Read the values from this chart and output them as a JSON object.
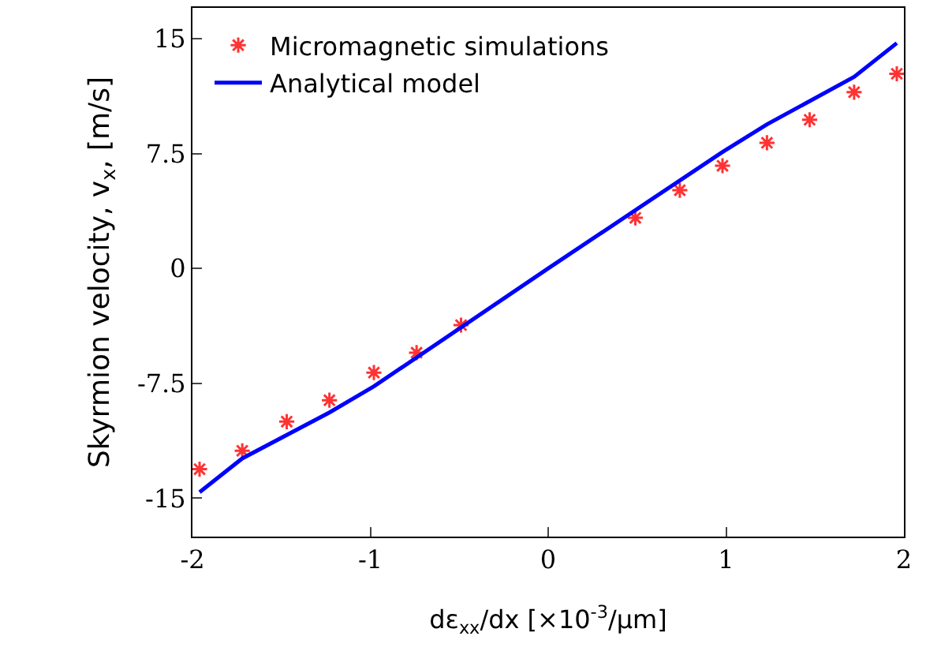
{
  "chart_data": {
    "type": "scatter",
    "xlabel": "dε$_{xx}$/dx [×10$^{-3}$/μm]",
    "ylabel": "Skyrmion velocity, v$_{x}$, [m/s]",
    "xlim": [
      -2,
      2
    ],
    "ylim": [
      -17.5,
      17
    ],
    "xticks": [
      -2,
      -1,
      0,
      1,
      2
    ],
    "yticks": [
      -15,
      -7.5,
      0,
      7.5,
      15
    ],
    "grid": false,
    "legend": "top left",
    "series": [
      {
        "name": "Micromagnetic simulations",
        "marker": "cross",
        "color": "#ff3333",
        "x": [
          -1.96,
          -1.72,
          -1.47,
          -1.23,
          -0.98,
          -0.74,
          -0.49,
          0.49,
          0.74,
          0.98,
          1.23,
          1.47,
          1.72,
          1.96
        ],
        "values": [
          -13.1,
          -11.9,
          -10.0,
          -8.6,
          -6.8,
          -5.5,
          -3.7,
          3.3,
          5.1,
          6.7,
          8.2,
          9.7,
          11.5,
          12.7
        ]
      },
      {
        "name": "Analytical model",
        "type": "line",
        "marker": "none",
        "color": "#0000ff",
        "x": [
          -1.96,
          -1.72,
          -1.23,
          -0.98,
          0,
          0.98,
          1.23,
          1.72,
          1.96
        ],
        "values": [
          -14.6,
          -12.4,
          -9.4,
          -7.7,
          0,
          7.6,
          9.4,
          12.5,
          14.7
        ]
      }
    ]
  }
}
